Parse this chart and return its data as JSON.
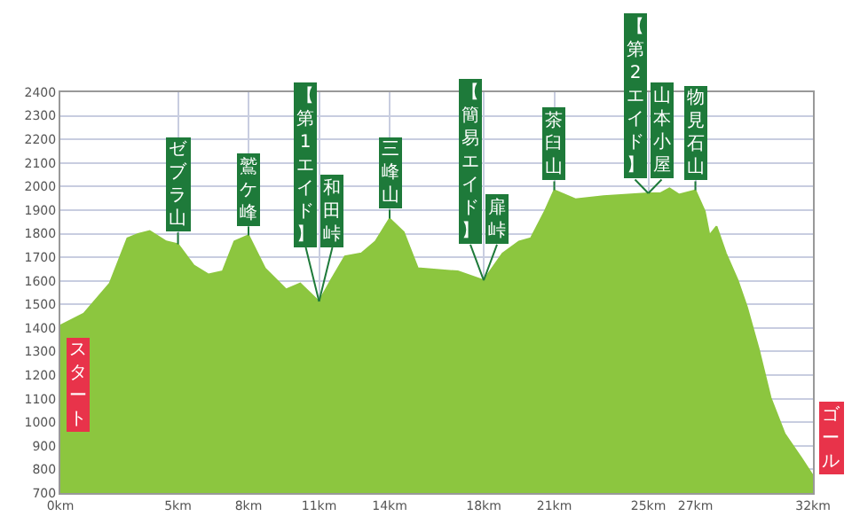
{
  "chart_data": {
    "type": "area",
    "x": [
      0,
      1.0,
      2.1,
      2.85,
      3.3,
      3.8,
      4.5,
      5.0,
      5.67,
      6.3,
      6.9,
      7.4,
      8.0,
      8.7,
      9.6,
      10.2,
      11.0,
      11.5,
      12.1,
      12.8,
      13.4,
      14.0,
      14.6,
      15.2,
      16.9,
      18.0,
      18.8,
      19.5,
      20.0,
      20.6,
      21.0,
      21.9,
      23.1,
      25.0,
      25.5,
      25.9,
      26.3,
      27.0,
      27.4,
      27.6,
      27.9,
      28.3,
      28.8,
      29.2,
      29.7,
      30.2,
      30.8,
      31.5,
      32.0
    ],
    "series": [
      {
        "color": "#8cc63f",
        "values": [
          1410,
          1461,
          1589,
          1780,
          1798,
          1811,
          1767,
          1755,
          1665,
          1627,
          1640,
          1767,
          1793,
          1653,
          1563,
          1589,
          1512,
          1602,
          1704,
          1716,
          1767,
          1864,
          1806,
          1653,
          1640,
          1602,
          1716,
          1767,
          1780,
          1895,
          1984,
          1946,
          1959,
          1971,
          1971,
          1992,
          1966,
          1984,
          1895,
          1793,
          1831,
          1716,
          1602,
          1487,
          1308,
          1104,
          951,
          849,
          773
        ]
      }
    ],
    "xlim": [
      0,
      32
    ],
    "xticks": [
      {
        "value": 0,
        "label": "0km"
      },
      {
        "value": 5,
        "label": "5km"
      },
      {
        "value": 8,
        "label": "8km"
      },
      {
        "value": 11,
        "label": "11km"
      },
      {
        "value": 14,
        "label": "14km"
      },
      {
        "value": 18,
        "label": "18km"
      },
      {
        "value": 21,
        "label": "21km"
      },
      {
        "value": 25,
        "label": "25km"
      },
      {
        "value": 27,
        "label": "27km"
      },
      {
        "value": 32,
        "label": "32km"
      }
    ],
    "ylim": [
      700,
      2400
    ],
    "yticks": [
      700,
      800,
      900,
      1000,
      1100,
      1200,
      1300,
      1400,
      1500,
      1600,
      1700,
      1800,
      1900,
      2000,
      2100,
      2200,
      2300,
      2400
    ],
    "grid": true,
    "marker": "none",
    "line_style": "solid",
    "annotations": [
      {
        "text": "スタート",
        "x": 0,
        "y": 1410
      },
      {
        "text": "ゼブラ山",
        "x": 5,
        "y": 1755
      },
      {
        "text": "鷲ケ峰",
        "x": 8,
        "y": 1793
      },
      {
        "text": "【第1エイド】",
        "x": 11,
        "y": 1512
      },
      {
        "text": "和田峠",
        "x": 11,
        "y": 1512
      },
      {
        "text": "三峰山",
        "x": 14,
        "y": 1864
      },
      {
        "text": "【簡易エイド】",
        "x": 18,
        "y": 1602
      },
      {
        "text": "扉峠",
        "x": 18,
        "y": 1602
      },
      {
        "text": "茶臼山",
        "x": 21,
        "y": 1984
      },
      {
        "text": "【第2エイド】",
        "x": 25,
        "y": 1971
      },
      {
        "text": "山本小屋",
        "x": 25,
        "y": 1971
      },
      {
        "text": "物見石山",
        "x": 27,
        "y": 1984
      },
      {
        "text": "ゴール",
        "x": 32,
        "y": 773
      }
    ]
  }
}
